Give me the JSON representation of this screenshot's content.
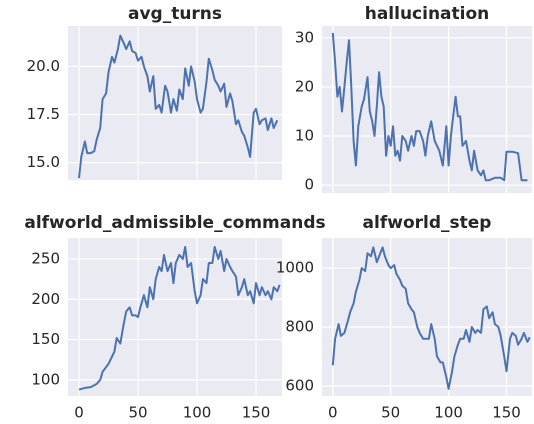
{
  "chart_data": [
    {
      "type": "line",
      "title": "avg_turns",
      "color": "#4c72b0",
      "grid": true,
      "xlim": [
        -9.3,
        172
      ],
      "xticks": [
        0,
        50,
        100,
        150
      ],
      "ylim": [
        14.1,
        22.1
      ],
      "yticks": [
        {
          "value": 15,
          "label": "15.0"
        },
        17.5,
        {
          "value": 20,
          "label": "20.0"
        }
      ],
      "x": [
        0,
        2,
        5,
        7,
        10,
        13,
        15,
        18,
        20,
        23,
        25,
        28,
        30,
        33,
        35,
        38,
        40,
        43,
        45,
        48,
        50,
        53,
        55,
        58,
        60,
        63,
        65,
        68,
        70,
        73,
        75,
        78,
        80,
        83,
        85,
        88,
        90,
        93,
        95,
        98,
        100,
        103,
        105,
        108,
        110,
        113,
        115,
        118,
        120,
        123,
        125,
        128,
        130,
        133,
        135,
        138,
        140,
        143,
        145,
        148,
        150,
        153,
        155,
        158,
        160,
        163,
        165,
        168
      ],
      "series": [
        {
          "values": [
            14.2,
            15.3,
            16.1,
            15.5,
            15.5,
            15.6,
            16.2,
            16.8,
            18.3,
            18.6,
            19.7,
            20.5,
            20.2,
            20.9,
            21.6,
            21.2,
            20.9,
            21.3,
            20.8,
            20.7,
            20.3,
            20.5,
            20.0,
            19.5,
            18.7,
            19.5,
            17.8,
            18.0,
            17.6,
            19.0,
            18.7,
            17.6,
            18.3,
            17.7,
            18.8,
            18.3,
            19.9,
            19.0,
            20.0,
            19.2,
            18.3,
            17.6,
            17.8,
            19.2,
            20.4,
            19.8,
            19.3,
            19.0,
            18.7,
            19.1,
            17.9,
            18.6,
            18.2,
            17.0,
            17.2,
            16.6,
            16.4,
            15.8,
            15.3,
            17.6,
            17.8,
            17.0,
            17.2,
            17.3,
            16.7,
            17.3,
            16.8,
            17.2
          ]
        }
      ]
    },
    {
      "type": "line",
      "title": "hallucination",
      "color": "#4c72b0",
      "grid": true,
      "xlim": [
        -9.3,
        172
      ],
      "xticks": [
        0,
        50,
        100,
        150
      ],
      "ylim": [
        -1.6,
        32.4
      ],
      "yticks": [
        0,
        10,
        20,
        30
      ],
      "x": [
        0,
        2,
        4,
        6,
        8,
        10,
        12,
        14,
        16,
        18,
        20,
        22,
        25,
        27,
        30,
        32,
        34,
        36,
        38,
        40,
        42,
        44,
        46,
        48,
        50,
        52,
        54,
        56,
        58,
        60,
        63,
        65,
        68,
        70,
        72,
        75,
        78,
        80,
        82,
        85,
        88,
        90,
        92,
        95,
        98,
        100,
        102,
        104,
        106,
        108,
        110,
        112,
        115,
        118,
        120,
        122,
        125,
        128,
        130,
        132,
        135,
        140,
        145,
        148,
        150,
        155,
        160,
        163,
        168
      ],
      "series": [
        {
          "values": [
            31,
            25,
            18,
            20,
            15,
            20,
            25,
            29.5,
            20,
            9,
            4,
            12,
            16,
            17.5,
            22,
            15,
            13,
            10,
            16,
            23,
            18,
            16,
            6,
            10,
            8,
            12,
            6,
            7,
            5,
            10,
            9,
            7,
            10,
            8,
            11,
            11,
            9,
            6,
            10,
            13,
            9,
            8,
            7,
            4,
            12,
            4,
            10,
            14,
            18,
            14,
            14,
            8,
            9,
            5,
            3,
            7,
            3,
            2,
            3,
            1,
            1,
            1.5,
            1.5,
            1,
            6.8,
            6.8,
            6.5,
            1,
            1
          ]
        }
      ]
    },
    {
      "type": "line",
      "title": "alfworld_admissible_commands",
      "color": "#4c72b0",
      "grid": true,
      "xlim": [
        -9.3,
        172
      ],
      "xticks": [
        0,
        50,
        100,
        150
      ],
      "ylim": [
        80,
        276
      ],
      "yticks": [
        100,
        150,
        200,
        250
      ],
      "x": [
        0,
        5,
        10,
        15,
        18,
        20,
        25,
        30,
        32,
        35,
        38,
        40,
        43,
        45,
        48,
        50,
        52,
        55,
        58,
        60,
        63,
        65,
        68,
        70,
        72,
        75,
        78,
        80,
        82,
        85,
        88,
        90,
        92,
        95,
        98,
        100,
        103,
        105,
        108,
        110,
        113,
        115,
        118,
        120,
        123,
        125,
        128,
        130,
        133,
        135,
        138,
        140,
        143,
        145,
        148,
        150,
        153,
        155,
        158,
        160,
        163,
        165,
        168,
        170
      ],
      "series": [
        {
          "values": [
            88,
            90,
            91,
            95,
            100,
            110,
            120,
            135,
            152,
            145,
            170,
            185,
            190,
            180,
            180,
            178,
            190,
            205,
            190,
            215,
            200,
            225,
            240,
            235,
            255,
            235,
            245,
            220,
            245,
            255,
            250,
            265,
            240,
            245,
            210,
            195,
            205,
            225,
            220,
            245,
            245,
            265,
            250,
            260,
            235,
            250,
            240,
            235,
            228,
            205,
            215,
            225,
            205,
            210,
            195,
            220,
            205,
            215,
            205,
            210,
            200,
            215,
            210,
            218
          ]
        }
      ]
    },
    {
      "type": "line",
      "title": "alfworld_step",
      "color": "#4c72b0",
      "grid": true,
      "xlim": [
        -9.3,
        172
      ],
      "xticks": [
        0,
        50,
        100,
        150
      ],
      "ylim": [
        566,
        1102
      ],
      "yticks": [
        600,
        800,
        1000
      ],
      "x": [
        0,
        2,
        5,
        7,
        10,
        13,
        15,
        18,
        20,
        23,
        25,
        28,
        30,
        33,
        35,
        38,
        40,
        43,
        45,
        48,
        50,
        53,
        55,
        58,
        60,
        63,
        65,
        68,
        70,
        73,
        75,
        78,
        80,
        83,
        85,
        88,
        90,
        93,
        95,
        98,
        100,
        103,
        105,
        108,
        110,
        113,
        115,
        118,
        120,
        123,
        125,
        128,
        130,
        133,
        135,
        138,
        140,
        143,
        145,
        148,
        150,
        153,
        155,
        158,
        160,
        163,
        165,
        168,
        170
      ],
      "series": [
        {
          "values": [
            670,
            760,
            810,
            770,
            780,
            820,
            850,
            880,
            920,
            960,
            1000,
            990,
            1050,
            1040,
            1070,
            1020,
            1040,
            1070,
            1040,
            1010,
            1000,
            1010,
            980,
            960,
            940,
            930,
            880,
            860,
            850,
            800,
            780,
            760,
            760,
            760,
            810,
            760,
            700,
            680,
            680,
            630,
            590,
            650,
            700,
            740,
            760,
            760,
            790,
            750,
            800,
            780,
            790,
            780,
            860,
            870,
            830,
            850,
            810,
            800,
            770,
            700,
            650,
            760,
            780,
            770,
            740,
            760,
            780,
            750,
            765
          ]
        }
      ]
    }
  ]
}
